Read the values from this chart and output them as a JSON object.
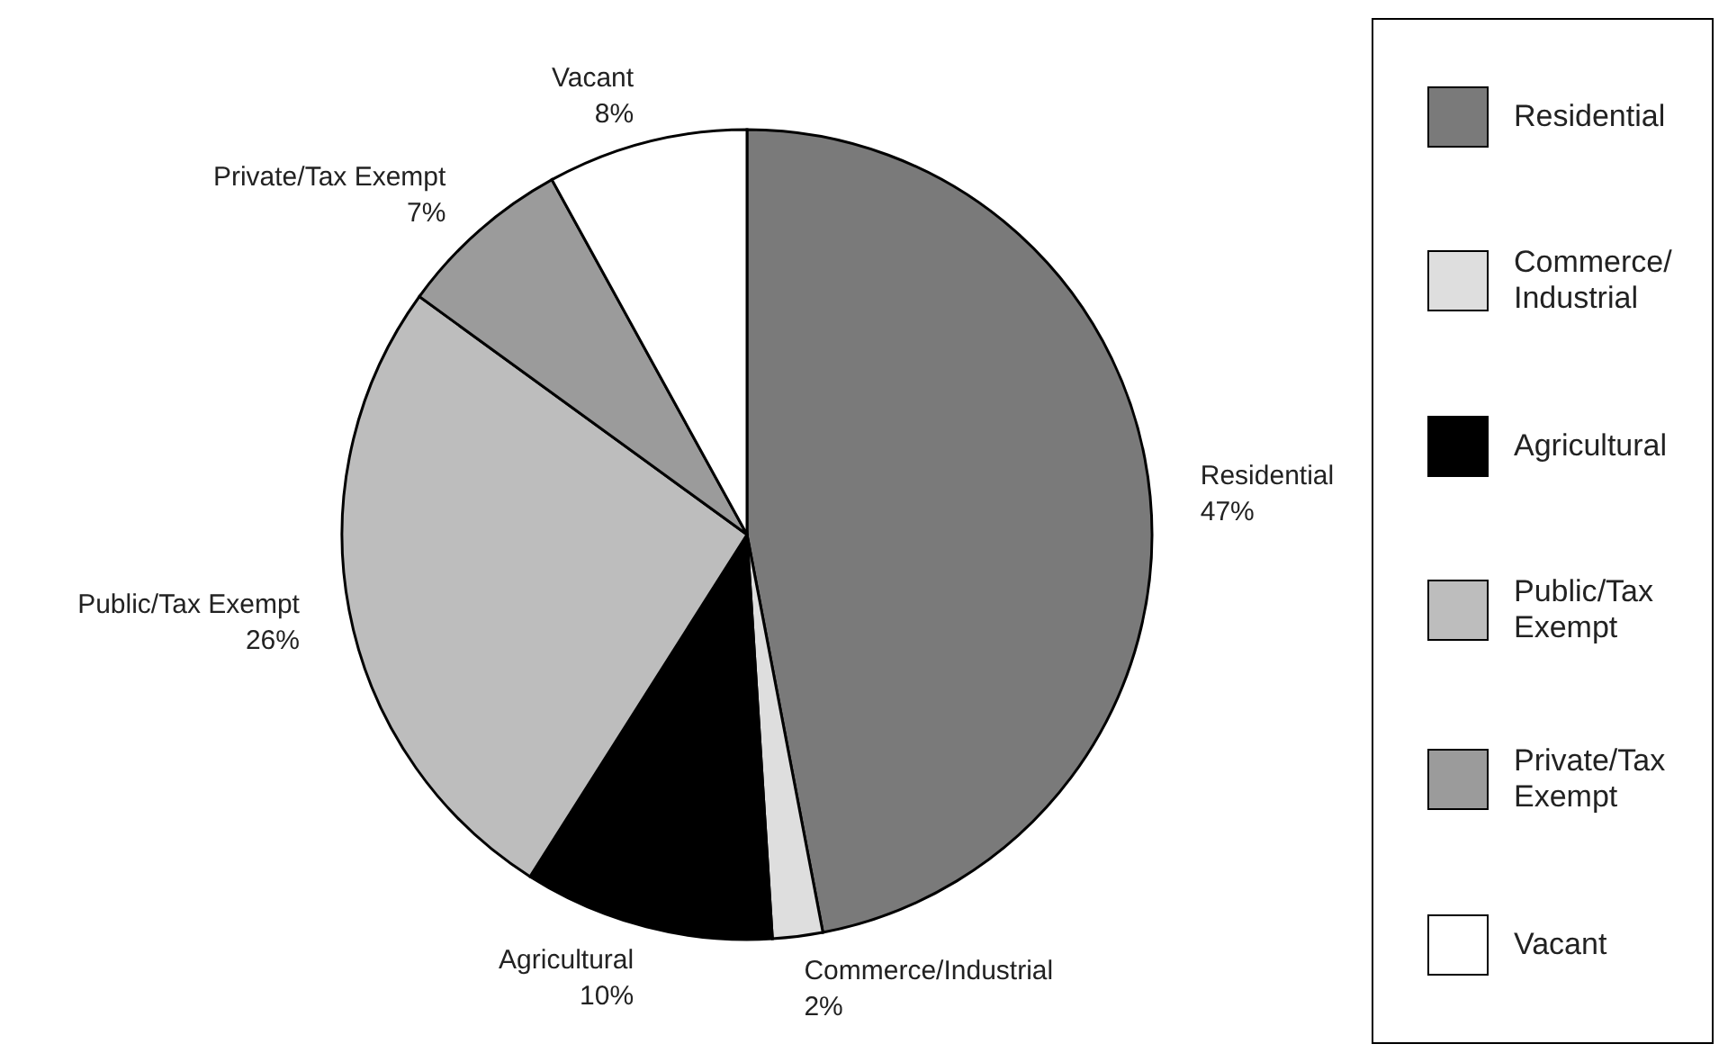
{
  "chart_data": {
    "type": "pie",
    "categories": [
      "Residential",
      "Commerce/Industrial",
      "Agricultural",
      "Public/Tax Exempt",
      "Private/Tax Exempt",
      "Vacant"
    ],
    "values": [
      47,
      2,
      10,
      26,
      7,
      8
    ],
    "colors": [
      "#7a7a7a",
      "#dedede",
      "#000000",
      "#bdbdbd",
      "#9b9b9b",
      "#ffffff"
    ],
    "value_labels": [
      "47%",
      "2%",
      "10%",
      "26%",
      "7%",
      "8%"
    ],
    "legend": "right"
  }
}
